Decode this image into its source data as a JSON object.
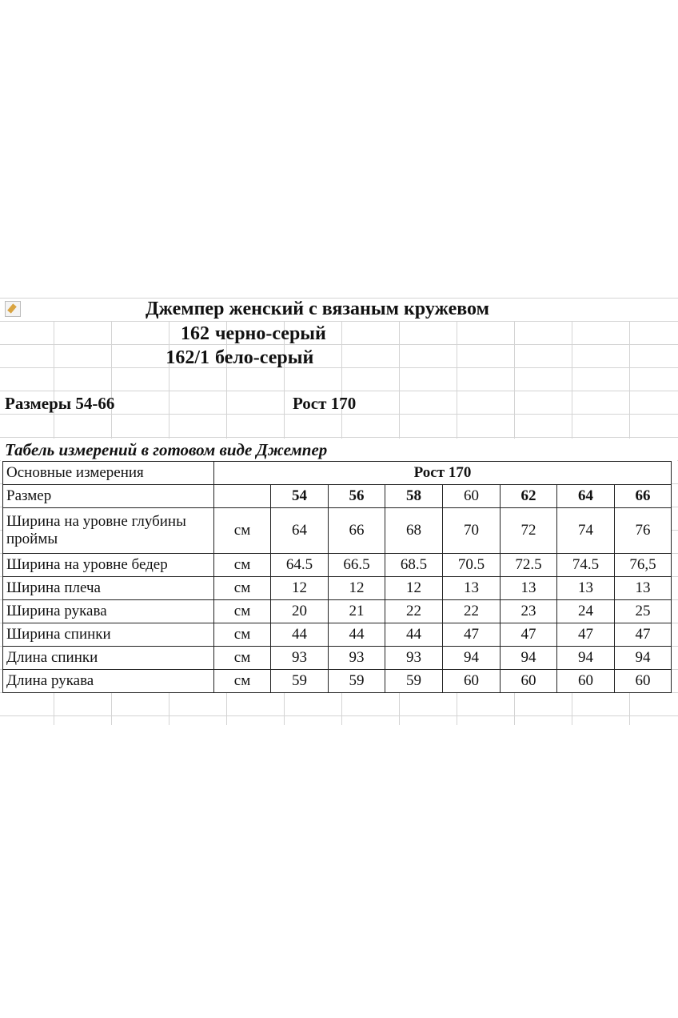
{
  "header": {
    "title": "Джемпер женский с вязаным кружевом",
    "variants": [
      {
        "code": "162",
        "color": "черно-серый"
      },
      {
        "code": "162/1",
        "color": "бело-серый"
      }
    ],
    "sizes": "Размеры 54-66",
    "height": "Рост 170",
    "table_caption": "Табель измерений в готовом виде Джемпер"
  },
  "icons": {
    "paste": "paste-options-icon"
  },
  "table": {
    "col0_header": "Основные измерения",
    "group_header": "Рост 170",
    "size_label": "Размер",
    "sizes": [
      "54",
      "56",
      "58",
      "60",
      "62",
      "64",
      "66"
    ],
    "rows": [
      {
        "name": "Ширина на уровне глубины проймы",
        "unit": "см",
        "values": [
          "64",
          "66",
          "68",
          "70",
          "72",
          "74",
          "76"
        ]
      },
      {
        "name": "Ширина на уровне бедер",
        "unit": "см",
        "values": [
          "64.5",
          "66.5",
          "68.5",
          "70.5",
          "72.5",
          "74.5",
          "76,5"
        ]
      },
      {
        "name": "Ширина плеча",
        "unit": "см",
        "values": [
          "12",
          "12",
          "12",
          "13",
          "13",
          "13",
          "13"
        ]
      },
      {
        "name": "Ширина рукава",
        "unit": "см",
        "values": [
          "20",
          "21",
          "22",
          "22",
          "23",
          "24",
          "25"
        ]
      },
      {
        "name": "Ширина спинки",
        "unit": "см",
        "values": [
          "44",
          "44",
          "44",
          "47",
          "47",
          "47",
          "47"
        ]
      },
      {
        "name": "Длина спинки",
        "unit": "см",
        "values": [
          "93",
          "93",
          "93",
          "94",
          "94",
          "94",
          "94"
        ]
      },
      {
        "name": "Длина рукава",
        "unit": "см",
        "values": [
          "59",
          "59",
          "59",
          "60",
          "60",
          "60",
          "60"
        ]
      }
    ]
  }
}
